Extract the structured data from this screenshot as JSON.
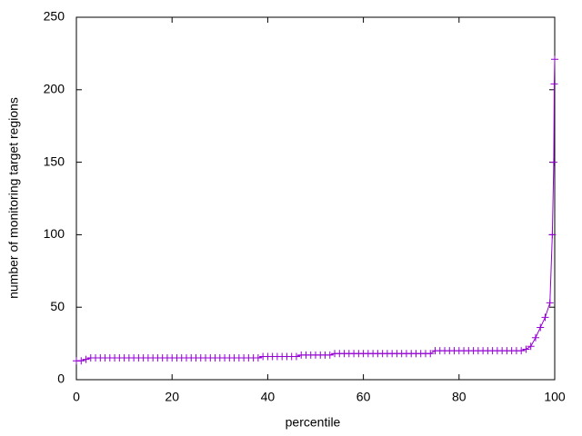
{
  "chart_data": {
    "type": "line",
    "xlabel": "percentile",
    "ylabel": "number of monitoring target regions",
    "color": "#9400d3",
    "marker": "+",
    "x": [
      0,
      1,
      2,
      3,
      4,
      5,
      6,
      7,
      8,
      9,
      10,
      11,
      12,
      13,
      14,
      15,
      16,
      17,
      18,
      19,
      20,
      21,
      22,
      23,
      24,
      25,
      26,
      27,
      28,
      29,
      30,
      31,
      32,
      33,
      34,
      35,
      36,
      37,
      38,
      39,
      40,
      41,
      42,
      43,
      44,
      45,
      46,
      47,
      48,
      49,
      50,
      51,
      52,
      53,
      54,
      55,
      56,
      57,
      58,
      59,
      60,
      61,
      62,
      63,
      64,
      65,
      66,
      67,
      68,
      69,
      70,
      71,
      72,
      73,
      74,
      75,
      76,
      77,
      78,
      79,
      80,
      81,
      82,
      83,
      84,
      85,
      86,
      87,
      88,
      89,
      90,
      91,
      92,
      93,
      94,
      95,
      96,
      97,
      98,
      99,
      99.5,
      99.8,
      99.9,
      100
    ],
    "values": [
      13,
      13,
      14,
      15,
      15,
      15,
      15,
      15,
      15,
      15,
      15,
      15,
      15,
      15,
      15,
      15,
      15,
      15,
      15,
      15,
      15,
      15,
      15,
      15,
      15,
      15,
      15,
      15,
      15,
      15,
      15,
      15,
      15,
      15,
      15,
      15,
      15,
      15,
      15,
      16,
      16,
      16,
      16,
      16,
      16,
      16,
      16,
      17,
      17,
      17,
      17,
      17,
      17,
      17,
      18,
      18,
      18,
      18,
      18,
      18,
      18,
      18,
      18,
      18,
      18,
      18,
      18,
      18,
      18,
      18,
      18,
      18,
      18,
      18,
      18,
      20,
      20,
      20,
      20,
      20,
      20,
      20,
      20,
      20,
      20,
      20,
      20,
      20,
      20,
      20,
      20,
      20,
      20,
      20,
      21,
      23,
      29,
      36,
      43,
      53,
      100,
      150,
      204,
      221
    ],
    "xlim": [
      0,
      100
    ],
    "xticks": [
      0,
      20,
      40,
      60,
      80,
      100
    ],
    "ylim": [
      0,
      250
    ],
    "yticks": [
      0,
      50,
      100,
      150,
      200,
      250
    ]
  }
}
